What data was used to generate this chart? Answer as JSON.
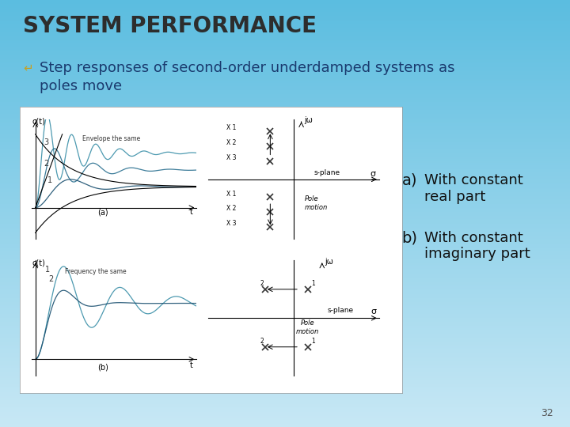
{
  "title": "SYSTEM PERFORMANCE",
  "title_color": "#2d2d2d",
  "title_fontsize": 20,
  "bullet_text_line1": "Step responses of second-order underdamped systems as",
  "bullet_text_line2": "poles move",
  "bullet_fontsize": 13,
  "bullet_color": "#1a3a6e",
  "item_a": "With constant\nreal part",
  "item_b": "With constant\nimaginary part",
  "items_fontsize": 13,
  "items_color": "#111111",
  "bg_color": "#5bbde0",
  "panel_bg": "#ffffff",
  "page_number": "32",
  "envelope_label": "Envelope the same",
  "frequency_label": "Frequency the same",
  "s_plane_label": "s-plane",
  "pole_motion_label": "Pole\nmotion",
  "jw_label": "jω",
  "sigma_label": "σ"
}
